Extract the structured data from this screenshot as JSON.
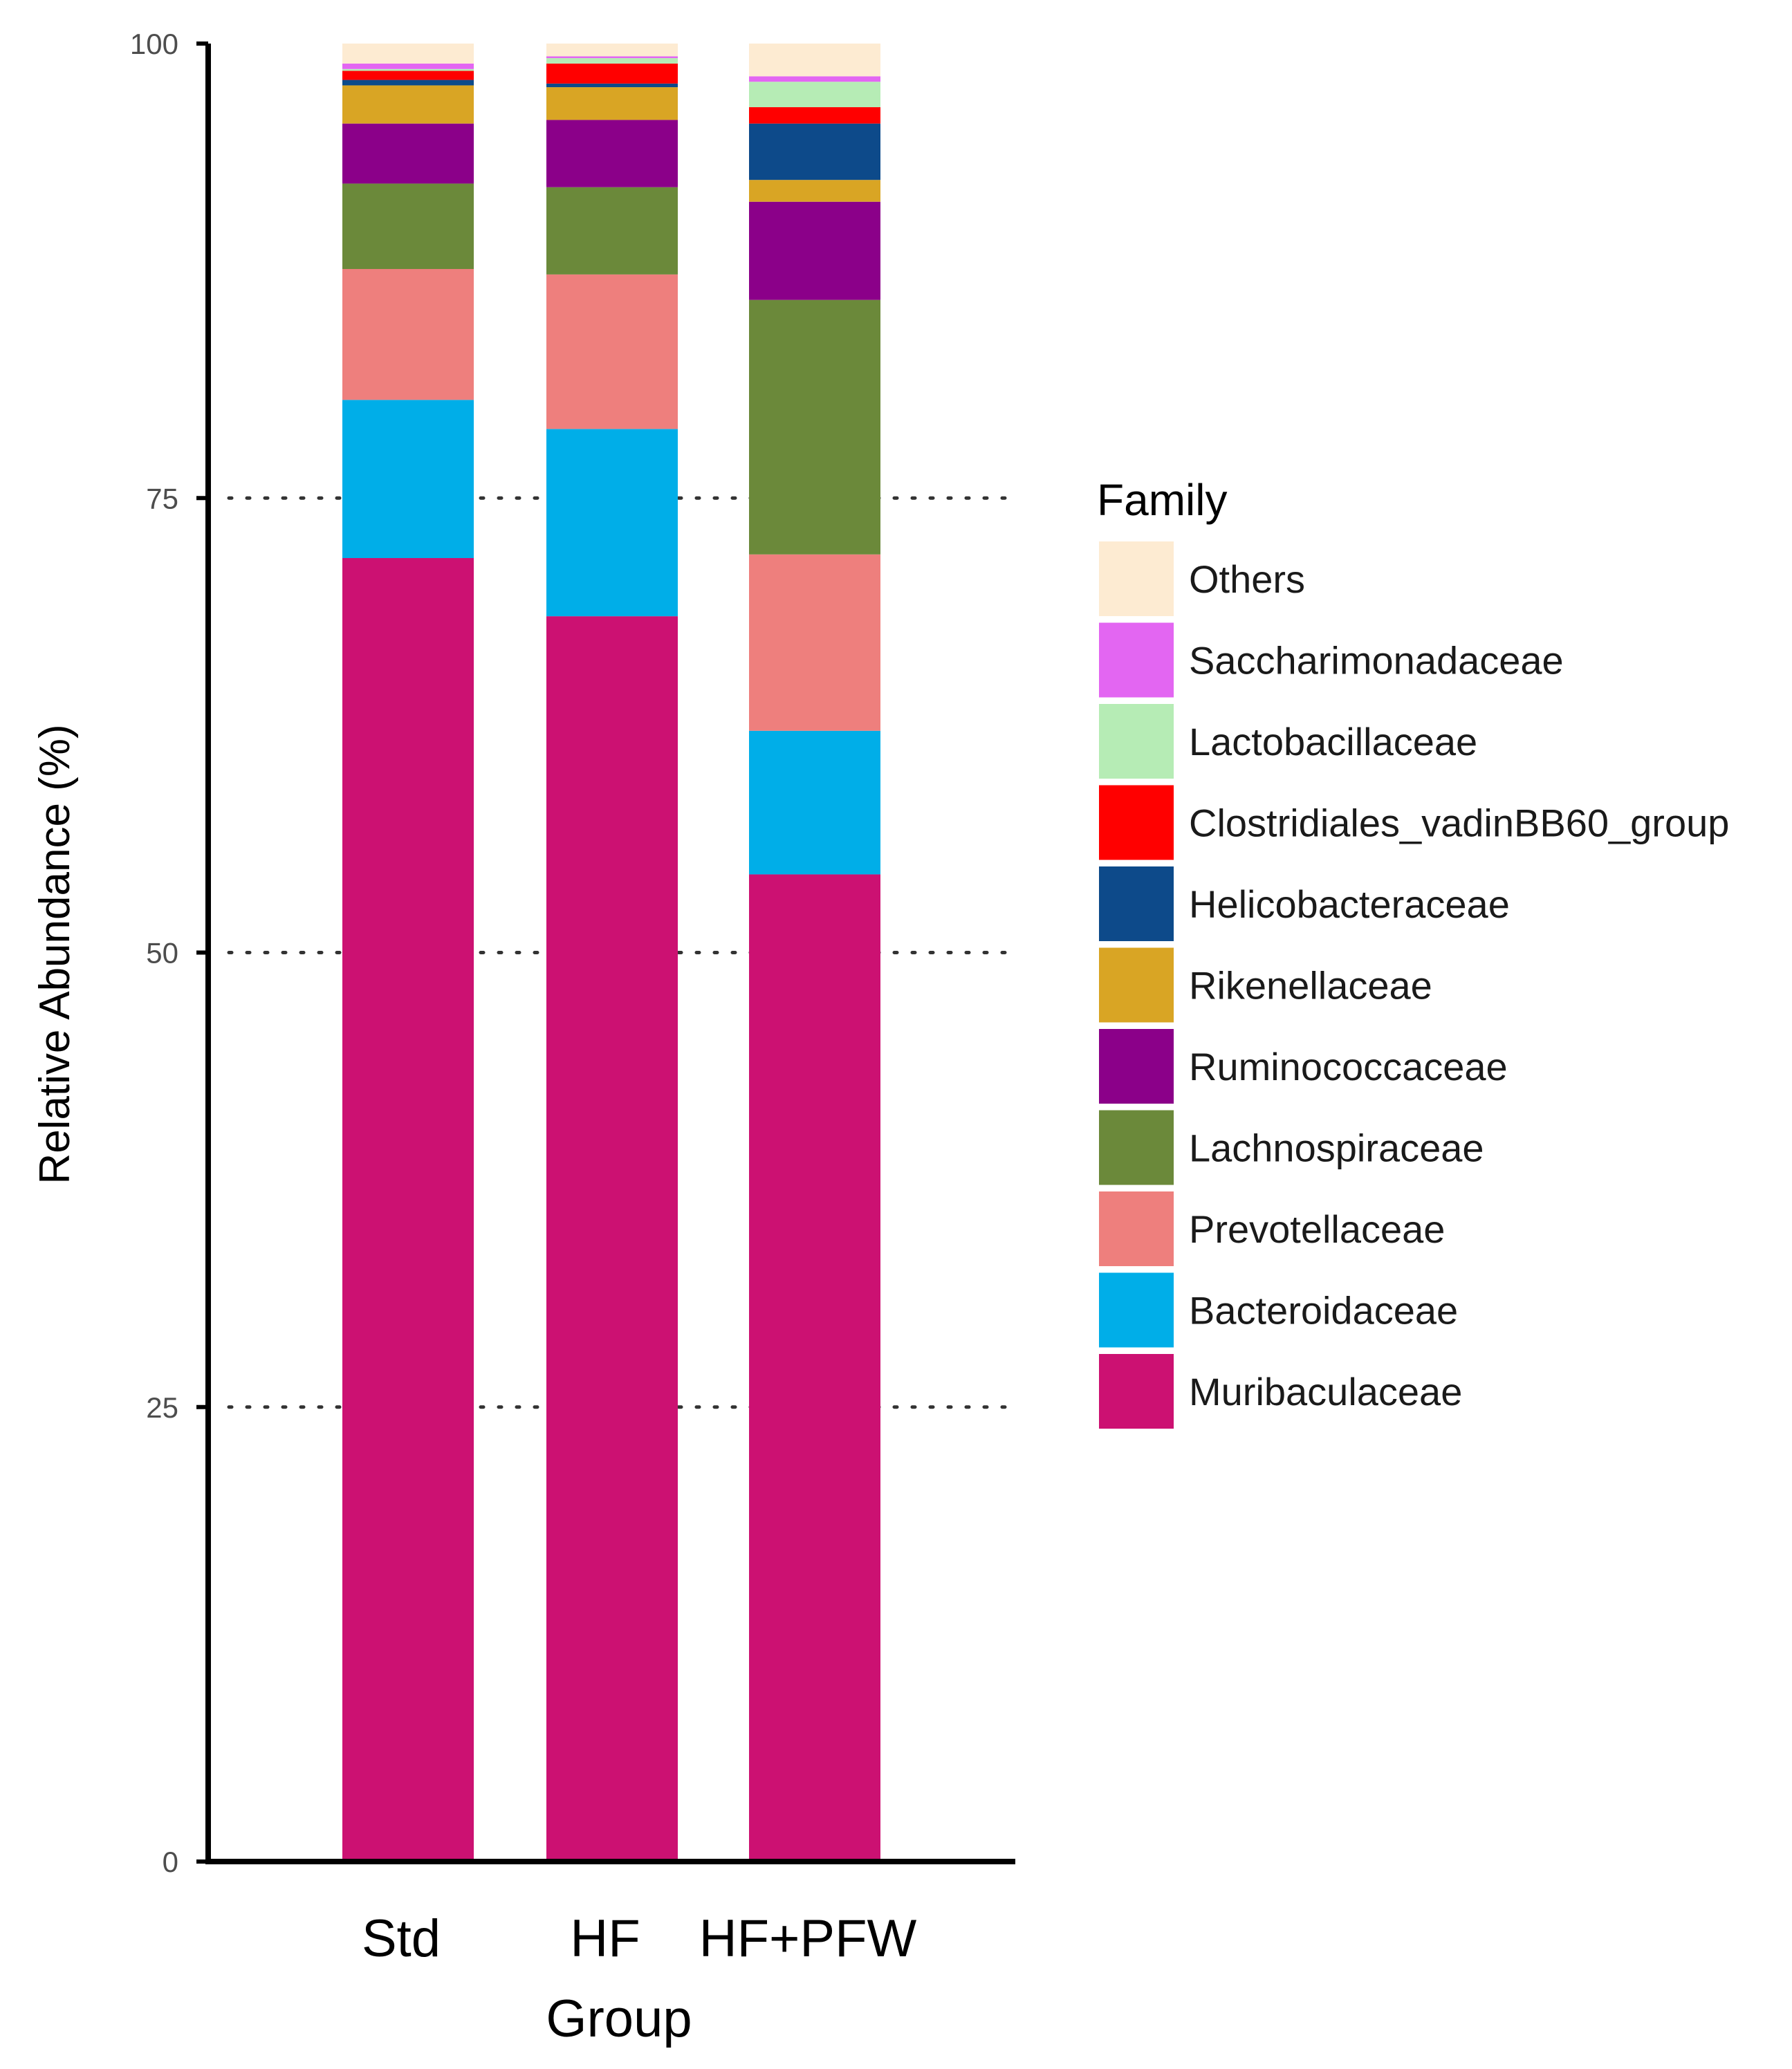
{
  "chart_data": {
    "type": "bar",
    "stacked": true,
    "categories": [
      "Std",
      "HF",
      "HF+PFW"
    ],
    "xlabel": "Group",
    "ylabel": "Relative Abundance (%)",
    "ylim": [
      0,
      100
    ],
    "yticks": [
      0,
      25,
      50,
      75,
      100
    ],
    "grid": "horizontal dotted at 25, 50, 75",
    "legend": {
      "title": "Family",
      "position": "right"
    },
    "series": [
      {
        "name": "Muribaculaceae",
        "color": "#cc1172",
        "values": [
          71.7,
          68.5,
          54.3
        ]
      },
      {
        "name": "Bacteroidaceae",
        "color": "#00aee8",
        "values": [
          8.7,
          10.3,
          7.9
        ]
      },
      {
        "name": "Prevotellaceae",
        "color": "#ee7f7d",
        "values": [
          7.2,
          8.5,
          9.7
        ]
      },
      {
        "name": "Lachnospiraceae",
        "color": "#6b893a",
        "values": [
          4.7,
          4.8,
          14.0
        ]
      },
      {
        "name": "Ruminococcaceae",
        "color": "#8b0089",
        "values": [
          3.3,
          3.7,
          5.4
        ]
      },
      {
        "name": "Rikenellaceae",
        "color": "#d9a524",
        "values": [
          2.1,
          1.8,
          1.2
        ]
      },
      {
        "name": "Helicobacteraceae",
        "color": "#0d4a8a",
        "values": [
          0.3,
          0.2,
          3.1
        ]
      },
      {
        "name": "Clostridiales_vadinBB60_group",
        "color": "#ff0000",
        "values": [
          0.5,
          1.1,
          0.9
        ]
      },
      {
        "name": "Lactobacillaceae",
        "color": "#b6ecb5",
        "values": [
          0.1,
          0.3,
          1.4
        ]
      },
      {
        "name": "Saccharimonadaceae",
        "color": "#e366f2",
        "values": [
          0.3,
          0.1,
          0.3
        ]
      },
      {
        "name": "Others",
        "color": "#fdebd2",
        "values": [
          1.1,
          0.7,
          1.8
        ]
      }
    ]
  }
}
